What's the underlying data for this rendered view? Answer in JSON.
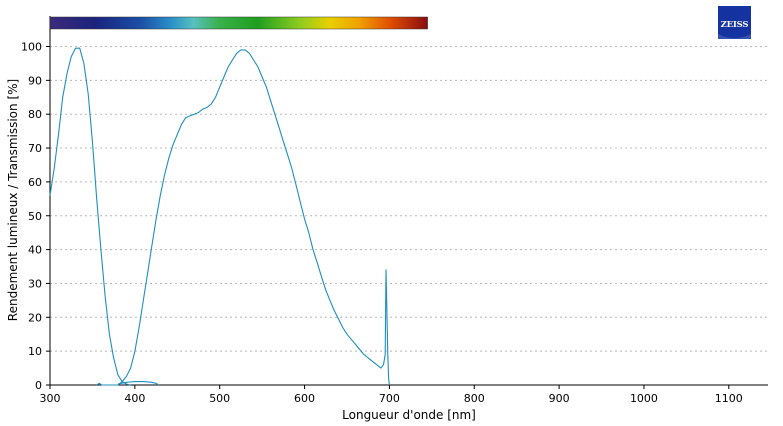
{
  "chart_data": {
    "type": "line",
    "xlabel": "Longueur d'onde [nm]",
    "ylabel": "Rendement lumineux / Transmission [%]",
    "xlim": [
      300,
      1150
    ],
    "ylim": [
      0,
      105
    ],
    "x_ticks": [
      300,
      400,
      500,
      600,
      700,
      800,
      900,
      1000,
      1100
    ],
    "y_ticks": [
      0,
      10,
      20,
      30,
      40,
      50,
      60,
      70,
      80,
      90,
      100
    ],
    "grid": true,
    "spectrum_bar": {
      "from_nm": 300,
      "to_nm": 745
    },
    "series": [
      {
        "color": "#1f8fbf",
        "points": [
          [
            300,
            56
          ],
          [
            305,
            64
          ],
          [
            310,
            74
          ],
          [
            315,
            85
          ],
          [
            320,
            92
          ],
          [
            325,
            97
          ],
          [
            330,
            99.5
          ],
          [
            335,
            99.5
          ],
          [
            340,
            95
          ],
          [
            345,
            86
          ],
          [
            350,
            72
          ],
          [
            355,
            55
          ],
          [
            360,
            40
          ],
          [
            365,
            26
          ],
          [
            370,
            15
          ],
          [
            375,
            8
          ],
          [
            380,
            3
          ],
          [
            385,
            1
          ],
          [
            390,
            0.3
          ],
          [
            395,
            0
          ]
        ]
      },
      {
        "color": "#1f8fbf",
        "points": [
          [
            355,
            0
          ],
          [
            358,
            0.5
          ],
          [
            361,
            0
          ],
          [
            380,
            0
          ],
          [
            385,
            1
          ],
          [
            390,
            2.5
          ],
          [
            395,
            5
          ],
          [
            400,
            10
          ],
          [
            405,
            17
          ],
          [
            410,
            25
          ],
          [
            415,
            33
          ],
          [
            420,
            41
          ],
          [
            425,
            49
          ],
          [
            430,
            56
          ],
          [
            435,
            62
          ],
          [
            440,
            67
          ],
          [
            445,
            71
          ],
          [
            450,
            74
          ],
          [
            455,
            77
          ],
          [
            460,
            79
          ],
          [
            465,
            79.5
          ],
          [
            470,
            80
          ],
          [
            475,
            80.5
          ],
          [
            480,
            81.5
          ],
          [
            485,
            82
          ],
          [
            490,
            83
          ],
          [
            495,
            85
          ],
          [
            500,
            88
          ],
          [
            505,
            91
          ],
          [
            510,
            94
          ],
          [
            515,
            96
          ],
          [
            520,
            98
          ],
          [
            525,
            99
          ],
          [
            530,
            99
          ],
          [
            535,
            98
          ],
          [
            540,
            96
          ],
          [
            545,
            94
          ],
          [
            550,
            91
          ],
          [
            555,
            88
          ],
          [
            560,
            84
          ],
          [
            565,
            80
          ],
          [
            570,
            76
          ],
          [
            575,
            72
          ],
          [
            580,
            68
          ],
          [
            585,
            64
          ],
          [
            590,
            59
          ],
          [
            595,
            54
          ],
          [
            600,
            49
          ],
          [
            605,
            45
          ],
          [
            610,
            40
          ],
          [
            615,
            36
          ],
          [
            620,
            32
          ],
          [
            625,
            28
          ],
          [
            630,
            25
          ],
          [
            635,
            22
          ],
          [
            640,
            19.5
          ],
          [
            645,
            17
          ],
          [
            650,
            15
          ],
          [
            655,
            13.5
          ],
          [
            660,
            12
          ],
          [
            665,
            10.5
          ],
          [
            670,
            9
          ],
          [
            675,
            8
          ],
          [
            680,
            7
          ],
          [
            685,
            6
          ],
          [
            690,
            5
          ],
          [
            693,
            6
          ],
          [
            695,
            9
          ],
          [
            696,
            34
          ],
          [
            697,
            22
          ],
          [
            698,
            10
          ],
          [
            699,
            2
          ],
          [
            700,
            0
          ]
        ]
      },
      {
        "color": "#1f8fbf",
        "points": [
          [
            380,
            0.3
          ],
          [
            390,
            0.8
          ],
          [
            400,
            1
          ],
          [
            410,
            1
          ],
          [
            420,
            0.8
          ],
          [
            425,
            0.5
          ],
          [
            428,
            0
          ]
        ]
      }
    ]
  },
  "logo": {
    "text": "ZEISS"
  }
}
